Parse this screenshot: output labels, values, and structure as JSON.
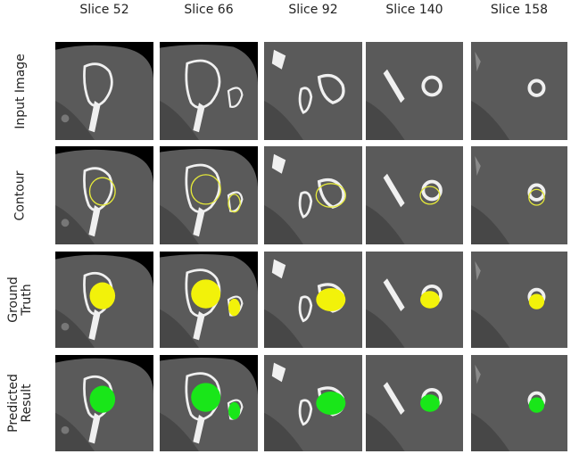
{
  "columns": [
    {
      "label": "Slice 52"
    },
    {
      "label": "Slice 66"
    },
    {
      "label": "Slice 92"
    },
    {
      "label": "Slice 140"
    },
    {
      "label": "Slice 158"
    }
  ],
  "rows": [
    {
      "label": "Input Image",
      "type": "input"
    },
    {
      "label": "Contour",
      "type": "contour"
    },
    {
      "label": "Ground\nTruth",
      "type": "truth"
    },
    {
      "label": "Predicted\nResult",
      "type": "pred"
    }
  ],
  "colors": {
    "contour": "#e6ea3a",
    "ground_truth": "#f2f20a",
    "predicted": "#19e619",
    "tissue": "#5a5a5a",
    "bone": "#f0f0f0",
    "background": "#000000"
  }
}
